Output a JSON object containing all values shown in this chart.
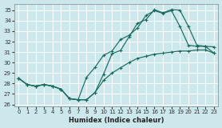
{
  "xlabel": "Humidex (Indice chaleur)",
  "bg_color": "#cce8ec",
  "grid_color": "#ffffff",
  "line_color": "#1a6b5e",
  "xlim": [
    -0.5,
    23.5
  ],
  "ylim": [
    25.8,
    35.6
  ],
  "yticks": [
    26,
    27,
    28,
    29,
    30,
    31,
    32,
    33,
    34,
    35
  ],
  "xticks": [
    0,
    1,
    2,
    3,
    4,
    5,
    6,
    7,
    8,
    9,
    10,
    11,
    12,
    13,
    14,
    15,
    16,
    17,
    18,
    19,
    20,
    21,
    22,
    23
  ],
  "line1_x": [
    0,
    1,
    2,
    3,
    4,
    5,
    6,
    7,
    8,
    9,
    10,
    11,
    12,
    13,
    14,
    15,
    16,
    17,
    18,
    19,
    20,
    21,
    22,
    23
  ],
  "line1_y": [
    28.5,
    27.9,
    27.75,
    27.9,
    27.75,
    27.45,
    26.55,
    26.45,
    26.45,
    27.15,
    28.9,
    30.85,
    31.15,
    32.45,
    33.75,
    34.1,
    35.05,
    34.75,
    35.05,
    35.0,
    33.45,
    31.65,
    31.55,
    31.5
  ],
  "line2_x": [
    0,
    1,
    2,
    3,
    4,
    5,
    6,
    7,
    8,
    9,
    10,
    11,
    12,
    13,
    14,
    15,
    16,
    17,
    18,
    19,
    20,
    21,
    22,
    23
  ],
  "line2_y": [
    28.5,
    27.9,
    27.75,
    27.9,
    27.75,
    27.45,
    26.55,
    26.45,
    28.6,
    29.55,
    30.7,
    31.1,
    32.2,
    32.6,
    33.3,
    34.5,
    34.95,
    34.7,
    34.95,
    33.45,
    31.65,
    31.55,
    31.55,
    30.9
  ],
  "line3_x": [
    0,
    1,
    2,
    3,
    4,
    5,
    6,
    7,
    8,
    9,
    10,
    11,
    12,
    13,
    14,
    15,
    16,
    17,
    18,
    19,
    20,
    21,
    22,
    23
  ],
  "line3_y": [
    28.5,
    27.9,
    27.75,
    27.9,
    27.75,
    27.45,
    26.55,
    26.45,
    26.45,
    27.15,
    28.3,
    29.0,
    29.5,
    30.0,
    30.4,
    30.6,
    30.8,
    30.9,
    31.0,
    31.1,
    31.1,
    31.2,
    31.2,
    30.9
  ]
}
